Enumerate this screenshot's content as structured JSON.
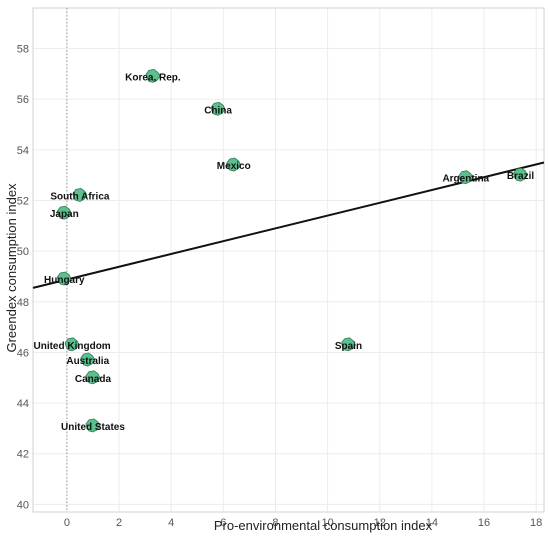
{
  "chart_data": {
    "type": "scatter",
    "xlabel": "Pro-environmental consumption index",
    "ylabel": "Greendex consumption index",
    "xlim": [
      -1.3,
      18.3
    ],
    "ylim": [
      39.7,
      59.6
    ],
    "xticks": [
      0,
      2,
      4,
      6,
      8,
      10,
      12,
      14,
      16,
      18
    ],
    "yticks": [
      40,
      42,
      44,
      46,
      48,
      50,
      52,
      54,
      56,
      58
    ],
    "grid": true,
    "marker_color": "#5cbf8e",
    "marker_edge_color": "#2f7f55",
    "points": [
      {
        "label": "Korea, Rep.",
        "x": 3.3,
        "y": 56.9
      },
      {
        "label": "China",
        "x": 5.8,
        "y": 55.6
      },
      {
        "label": "Mexico",
        "x": 6.4,
        "y": 53.4
      },
      {
        "label": "Argentina",
        "x": 15.3,
        "y": 52.9
      },
      {
        "label": "Brazil",
        "x": 17.4,
        "y": 53.0
      },
      {
        "label": "South Africa",
        "x": 0.5,
        "y": 52.2
      },
      {
        "label": "Japan",
        "x": -0.1,
        "y": 51.5
      },
      {
        "label": "Hungary",
        "x": -0.1,
        "y": 48.9
      },
      {
        "label": "United Kingdom",
        "x": 0.2,
        "y": 46.3
      },
      {
        "label": "Spain",
        "x": 10.8,
        "y": 46.3
      },
      {
        "label": "Australia",
        "x": 0.8,
        "y": 45.7
      },
      {
        "label": "Canada",
        "x": 1.0,
        "y": 45.0
      },
      {
        "label": "United States",
        "x": 1.0,
        "y": 43.1
      }
    ],
    "trendline": {
      "x": [
        -1.3,
        18.3
      ],
      "y": [
        48.55,
        53.5
      ]
    },
    "reference_line_x": 0
  }
}
